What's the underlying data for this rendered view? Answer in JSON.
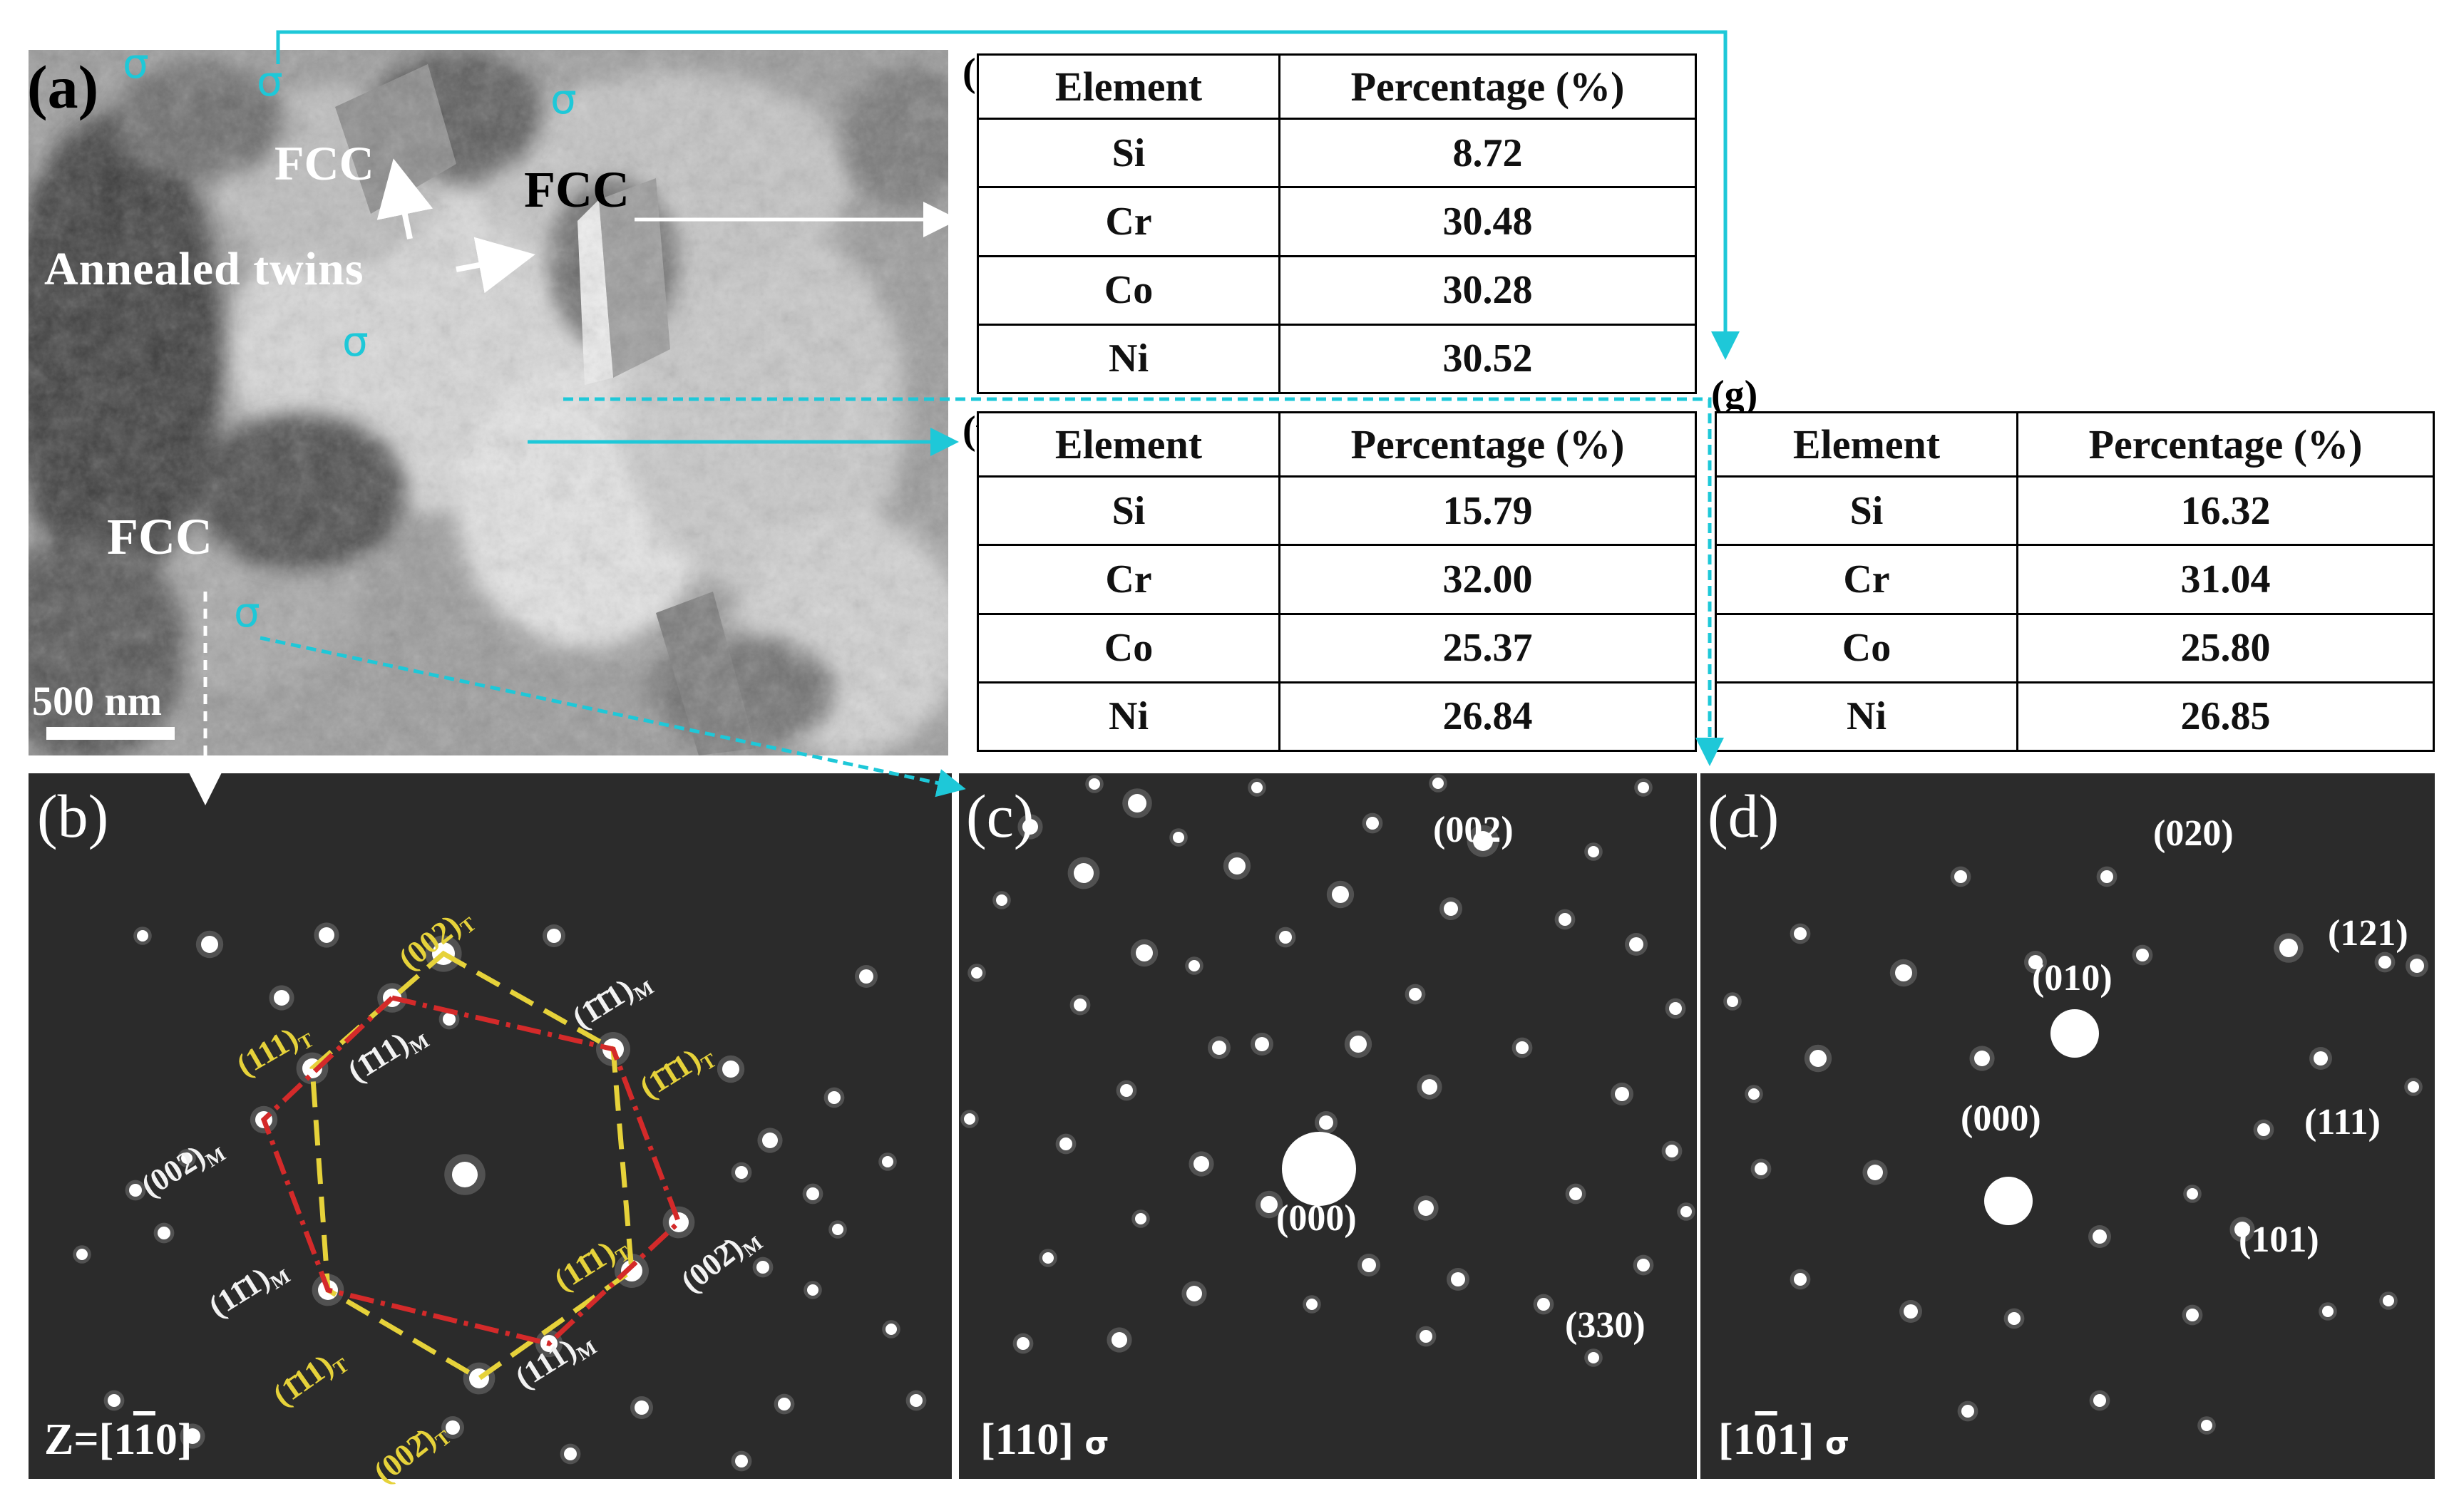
{
  "figure": {
    "panel_a": {
      "label": "(a)",
      "fcc_labels": [
        "FCC",
        "FCC",
        "FCC"
      ],
      "twins_label": "Annealed twins",
      "sigma_labels": [
        "σ",
        "σ",
        "σ",
        "σ",
        "σ"
      ],
      "scale_bar": "500 nm"
    },
    "panel_b": {
      "label": "(b)",
      "zone_axis": "Z=[1",
      "zone_axis_bar": "1",
      "zone_axis_end": "0]",
      "t_labels": [
        "(002)",
        "(111)",
        "(1̄1̄1)",
        "(11̄1)",
        "(1̄11)",
        "(002̄)"
      ],
      "t_sub": "T",
      "m_labels": [
        "(1̄1̄1)",
        "(1̄11)",
        "(002)",
        "(11̄1)",
        "(111)",
        "(002̄)"
      ],
      "m_sub": "M"
    },
    "panel_c": {
      "label": "(c)",
      "spot_labels": [
        "(002)",
        "(000)",
        "(330)"
      ],
      "zone_axis": "[110]",
      "phase": "σ"
    },
    "panel_d": {
      "label": "(d)",
      "spot_labels": [
        "(020)",
        "(121)",
        "(010)",
        "(000)",
        "(111)",
        "(101)"
      ],
      "zone_axis_pre": "[1",
      "zone_axis_bar": "0",
      "zone_axis_post": "1]",
      "phase": "σ"
    },
    "tables": {
      "header": [
        "Element",
        "Percentage (%)"
      ],
      "e": {
        "label": "(e)",
        "rows": [
          [
            "Si",
            "8.72"
          ],
          [
            "Cr",
            "30.48"
          ],
          [
            "Co",
            "30.28"
          ],
          [
            "Ni",
            "30.52"
          ]
        ]
      },
      "f": {
        "label": "(f)",
        "rows": [
          [
            "Si",
            "15.79"
          ],
          [
            "Cr",
            "32.00"
          ],
          [
            "Co",
            "25.37"
          ],
          [
            "Ni",
            "26.84"
          ]
        ]
      },
      "g": {
        "label": "(g)",
        "rows": [
          [
            "Si",
            "16.32"
          ],
          [
            "Cr",
            "31.04"
          ],
          [
            "Co",
            "25.80"
          ],
          [
            "Ni",
            "26.85"
          ]
        ]
      }
    },
    "colors": {
      "cyan": "#1ec8d8",
      "yellow": "#e6d23a",
      "red": "#d42a2a",
      "diffraction_bg": "#2a2a2a"
    }
  }
}
